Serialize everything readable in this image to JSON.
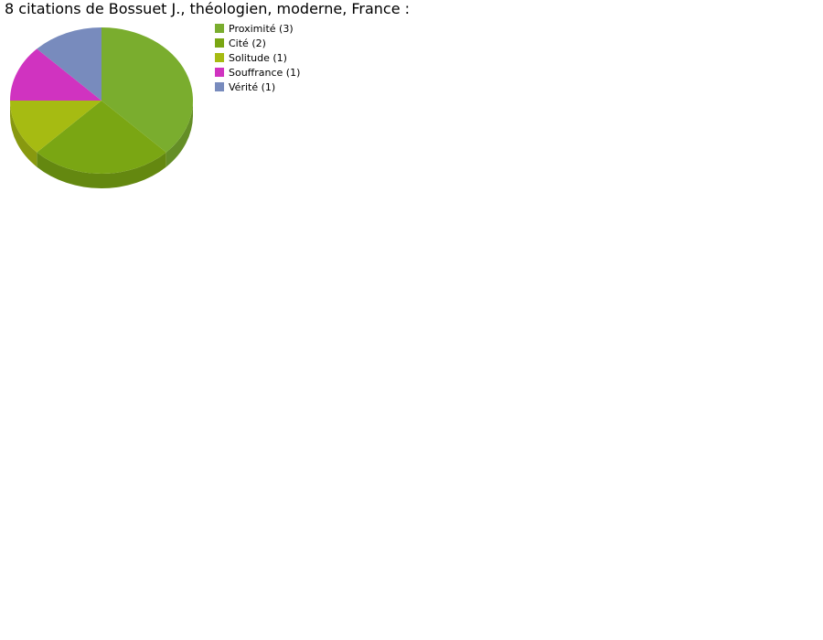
{
  "chart_data": {
    "type": "pie",
    "title": "8 citations de Bossuet J., théologien, moderne, France :",
    "legend_position": "right",
    "slices": [
      {
        "label": "Proximité (3)",
        "value": 3,
        "color": "#7aad2e"
      },
      {
        "label": "Cité (2)",
        "value": 2,
        "color": "#7aa613"
      },
      {
        "label": "Solitude (1)",
        "value": 1,
        "color": "#a6bb12"
      },
      {
        "label": "Souffrance (1)",
        "value": 1,
        "color": "#d033c0"
      },
      {
        "label": "Vérité (1)",
        "value": 1,
        "color": "#788bbd"
      }
    ],
    "style": "3d"
  }
}
